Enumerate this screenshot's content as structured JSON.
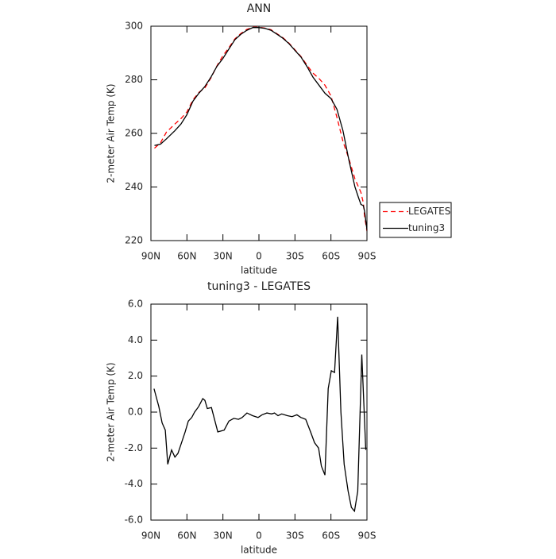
{
  "chart_data": [
    {
      "type": "line",
      "title": "ANN",
      "xlabel": "latitude",
      "ylabel": "2-meter Air Temp (K)",
      "x": [
        87,
        82,
        77,
        70,
        65,
        60,
        55,
        50,
        45,
        40,
        35,
        30,
        25,
        20,
        15,
        10,
        5,
        0,
        -5,
        -10,
        -15,
        -20,
        -25,
        -30,
        -35,
        -40,
        -45,
        -50,
        -55,
        -60,
        -65,
        -70,
        -75,
        -80,
        -83,
        -85,
        -87,
        -88,
        -90
      ],
      "series": [
        {
          "name": "LEGATES",
          "color": "#ff0000",
          "line_style": "dashed",
          "values": [
            254.5,
            256.5,
            260.5,
            263.5,
            265.5,
            268,
            272.5,
            275.3,
            277,
            280.7,
            285.2,
            289,
            292,
            295.3,
            297.3,
            298.8,
            299.6,
            299.6,
            299.3,
            298.7,
            297.2,
            295.7,
            293.7,
            291.2,
            288.7,
            285.5,
            282.5,
            280.5,
            278,
            274,
            266,
            257,
            250.5,
            243,
            240,
            238,
            234,
            229,
            223.5
          ]
        },
        {
          "name": "tuning3",
          "color": "#000000",
          "line_style": "solid",
          "values": [
            255.5,
            256,
            258,
            261,
            263.5,
            267,
            272,
            275,
            277.5,
            281,
            285,
            288,
            291.5,
            295,
            297,
            298.5,
            299.5,
            299.5,
            299.2,
            298.5,
            297,
            295.5,
            293.5,
            291,
            288.5,
            285,
            281,
            278,
            275,
            273,
            269,
            261,
            250,
            240,
            236,
            233.5,
            233,
            231,
            224
          ]
        }
      ],
      "xlim": [
        90,
        -90
      ],
      "xticks": [
        {
          "value": 90,
          "label": "90N"
        },
        {
          "value": 60,
          "label": "60N"
        },
        {
          "value": 30,
          "label": "30N"
        },
        0,
        {
          "value": -30,
          "label": "30S"
        },
        {
          "value": -60,
          "label": "60S"
        },
        {
          "value": -90,
          "label": "90S"
        }
      ],
      "ylim": [
        220,
        300
      ],
      "yticks": [
        220,
        240,
        260,
        280,
        300
      ],
      "legend": "right"
    },
    {
      "type": "line",
      "title": "tuning3 - LEGATES",
      "xlabel": "latitude",
      "ylabel": "2-meter Air Temp (K)",
      "x": [
        87.4,
        83.4,
        80.7,
        78,
        76,
        72.8,
        70,
        67.5,
        64,
        61.5,
        58.8,
        56,
        53.6,
        50.3,
        46.8,
        45,
        43,
        39.6,
        34.3,
        29,
        25,
        21,
        17,
        14,
        10,
        5.3,
        0.7,
        -2.6,
        -6.6,
        -10.6,
        -13,
        -15.9,
        -19,
        -23.7,
        -27.6,
        -31.6,
        -35,
        -39,
        -43,
        -46.3,
        -49.7,
        -52,
        -55,
        -57.7,
        -60.3,
        -63,
        -65.6,
        -68.3,
        -71,
        -74.3,
        -77,
        -79.6,
        -82.3,
        -85.7,
        -89
      ],
      "series": [
        {
          "name": "tuning3 - LEGATES",
          "color": "#000000",
          "line_style": "solid",
          "values": [
            1.3,
            0.3,
            -0.6,
            -1.0,
            -2.9,
            -2.1,
            -2.5,
            -2.3,
            -1.6,
            -1.1,
            -0.5,
            -0.3,
            0.0,
            0.3,
            0.75,
            0.65,
            0.2,
            0.25,
            -1.1,
            -1.0,
            -0.5,
            -0.35,
            -0.4,
            -0.3,
            -0.05,
            -0.2,
            -0.3,
            -0.15,
            -0.05,
            -0.1,
            -0.05,
            -0.2,
            -0.1,
            -0.2,
            -0.25,
            -0.15,
            -0.3,
            -0.4,
            -1.1,
            -1.7,
            -2.0,
            -3.0,
            -3.5,
            1.3,
            2.3,
            2.2,
            5.3,
            0.0,
            -2.9,
            -4.4,
            -5.3,
            -5.5,
            -4.4,
            3.2,
            -2.1
          ]
        }
      ],
      "xlim": [
        90,
        -90
      ],
      "xticks": [
        {
          "value": 90,
          "label": "90N"
        },
        {
          "value": 60,
          "label": "60N"
        },
        {
          "value": 30,
          "label": "30N"
        },
        0,
        {
          "value": -30,
          "label": "30S"
        },
        {
          "value": -60,
          "label": "60S"
        },
        {
          "value": -90,
          "label": "90S"
        }
      ],
      "ylim": [
        -6,
        6
      ],
      "yticks": [
        {
          "value": -6,
          "label": "-6.0"
        },
        {
          "value": -4,
          "label": "-4.0"
        },
        {
          "value": -2,
          "label": "-2.0"
        },
        {
          "value": 0,
          "label": "0.0"
        },
        {
          "value": 2,
          "label": "2.0"
        },
        {
          "value": 4,
          "label": "4.0"
        },
        {
          "value": 6,
          "label": "6.0"
        }
      ],
      "legend": "none"
    }
  ]
}
